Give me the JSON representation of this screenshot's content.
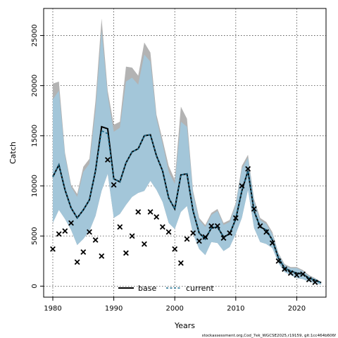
{
  "chart_data": {
    "type": "line",
    "title": "",
    "xlabel": "Years",
    "ylabel": "Catch",
    "xlim": [
      1978.5,
      2024.8
    ],
    "ylim": [
      -1100,
      27700
    ],
    "xticks": [
      1980,
      1990,
      2000,
      2010,
      2020
    ],
    "yticks": [
      0,
      5000,
      10000,
      15000,
      20000,
      25000
    ],
    "grid": true,
    "legend_position": "bottom-center",
    "footer": "stockassessment.org,Cod_7ek_WGCSE2025,r19159, git:1cc464b606f",
    "years": [
      1980,
      1981,
      1982,
      1983,
      1984,
      1985,
      1986,
      1987,
      1988,
      1989,
      1990,
      1991,
      1992,
      1993,
      1994,
      1995,
      1996,
      1997,
      1998,
      1999,
      2000,
      2001,
      2002,
      2003,
      2004,
      2005,
      2006,
      2007,
      2008,
      2009,
      2010,
      2011,
      2012,
      2013,
      2014,
      2015,
      2016,
      2017,
      2018,
      2019,
      2020,
      2021,
      2022,
      2023,
      2024
    ],
    "series": [
      {
        "name": "base",
        "color": "#000000",
        "estimate": [
          10900,
          12100,
          9600,
          7800,
          6800,
          7600,
          8600,
          11500,
          15900,
          15700,
          10700,
          10400,
          12300,
          13400,
          13700,
          15000,
          15100,
          13000,
          11500,
          8800,
          7700,
          11100,
          11200,
          7500,
          5300,
          4700,
          5800,
          5900,
          4900,
          5200,
          6700,
          9500,
          11500,
          7500,
          5900,
          5600,
          4600,
          2800,
          1800,
          1500,
          1300,
          1200,
          800,
          600,
          350
        ],
        "upper": [
          20200,
          20400,
          13300,
          10100,
          9200,
          11900,
          12700,
          18500,
          26700,
          19500,
          16100,
          16400,
          21900,
          21800,
          21000,
          24300,
          23300,
          17100,
          14600,
          12000,
          10600,
          17900,
          16700,
          9500,
          6800,
          6100,
          7300,
          7700,
          6300,
          6600,
          8300,
          12000,
          13100,
          8700,
          6800,
          6400,
          5400,
          3300,
          2200,
          1900,
          1900,
          1600,
          1100,
          800,
          400
        ],
        "lower": [
          6300,
          7600,
          6700,
          5600,
          4100,
          4700,
          5500,
          7000,
          9500,
          11200,
          6800,
          7200,
          8100,
          8900,
          9300,
          9500,
          10500,
          9600,
          8400,
          6300,
          5700,
          7400,
          8000,
          5200,
          3700,
          3100,
          4400,
          4300,
          3500,
          3900,
          5200,
          6800,
          9600,
          5800,
          4400,
          4200,
          3800,
          2300,
          1400,
          1100,
          800,
          700,
          450,
          280,
          150
        ]
      },
      {
        "name": "current",
        "color": "#1a6a8a",
        "fill": "#a3c6d9",
        "estimate": [
          10900,
          12100,
          9600,
          7800,
          6800,
          7600,
          8600,
          11500,
          15500,
          15200,
          10700,
          10400,
          12300,
          13400,
          13700,
          15000,
          15100,
          13000,
          11500,
          8800,
          7700,
          11100,
          11200,
          7500,
          5300,
          4700,
          5800,
          5900,
          4900,
          5200,
          6700,
          9500,
          11500,
          7500,
          5900,
          5600,
          4600,
          2800,
          1800,
          1500,
          1300,
          1200,
          800,
          600,
          350
        ],
        "upper": [
          18600,
          19500,
          13000,
          9900,
          8900,
          11400,
          12200,
          17500,
          25500,
          19000,
          15400,
          15800,
          20400,
          20800,
          20100,
          23100,
          22400,
          16700,
          14200,
          11400,
          10200,
          16400,
          15900,
          9200,
          6600,
          5900,
          7100,
          7500,
          6100,
          6400,
          8100,
          11700,
          12800,
          8500,
          6600,
          6200,
          5200,
          3200,
          2100,
          1800,
          1800,
          1500,
          1000,
          750,
          380
        ],
        "lower": [
          6300,
          7600,
          6700,
          5600,
          4100,
          4700,
          5500,
          7000,
          9500,
          11200,
          6800,
          7200,
          8100,
          8900,
          9300,
          9500,
          10500,
          9600,
          8400,
          6300,
          5700,
          7400,
          8000,
          5200,
          3700,
          3100,
          4400,
          4300,
          3500,
          3900,
          5200,
          6800,
          9600,
          5800,
          4400,
          4200,
          3800,
          2300,
          1400,
          1100,
          800,
          700,
          450,
          280,
          150
        ]
      }
    ],
    "observed": {
      "marker": "x",
      "years": [
        1980,
        1981,
        1982,
        1983,
        1984,
        1985,
        1986,
        1987,
        1988,
        1989,
        1990,
        1991,
        1992,
        1993,
        1994,
        1995,
        1996,
        1997,
        1998,
        1999,
        2000,
        2001,
        2002,
        2003,
        2004,
        2005,
        2006,
        2007,
        2008,
        2009,
        2010,
        2011,
        2012,
        2013,
        2014,
        2015,
        2016,
        2017,
        2018,
        2019,
        2020,
        2021,
        2022,
        2023
      ],
      "values": [
        3700,
        5200,
        5500,
        6300,
        2400,
        3400,
        5400,
        4600,
        3000,
        12600,
        10100,
        5900,
        3300,
        5000,
        7400,
        4200,
        7400,
        6900,
        5900,
        5400,
        3700,
        2300,
        4700,
        5300,
        4500,
        4900,
        6000,
        6000,
        4800,
        5300,
        6800,
        10000,
        11700,
        7700,
        6000,
        5400,
        4300,
        2500,
        1700,
        1300,
        1100,
        1200,
        650,
        380
      ]
    }
  }
}
